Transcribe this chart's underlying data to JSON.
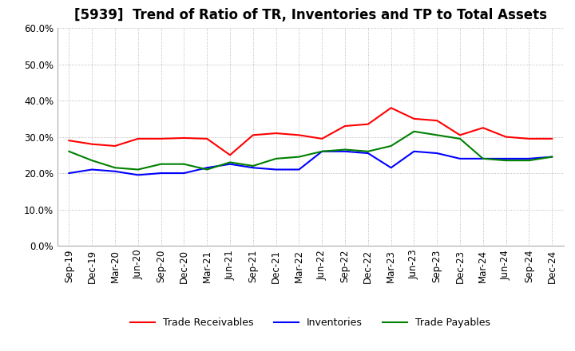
{
  "title": "[5939]  Trend of Ratio of TR, Inventories and TP to Total Assets",
  "labels": [
    "Sep-19",
    "Dec-19",
    "Mar-20",
    "Jun-20",
    "Sep-20",
    "Dec-20",
    "Mar-21",
    "Jun-21",
    "Sep-21",
    "Dec-21",
    "Mar-22",
    "Jun-22",
    "Sep-22",
    "Dec-22",
    "Mar-23",
    "Jun-23",
    "Sep-23",
    "Dec-23",
    "Mar-24",
    "Jun-24",
    "Sep-24",
    "Dec-24"
  ],
  "trade_receivables": [
    29.0,
    28.0,
    27.5,
    29.5,
    29.5,
    29.7,
    29.5,
    25.0,
    30.5,
    31.0,
    30.5,
    29.5,
    33.0,
    33.5,
    38.0,
    35.0,
    34.5,
    30.5,
    32.5,
    30.0,
    29.5,
    29.5
  ],
  "inventories": [
    20.0,
    21.0,
    20.5,
    19.5,
    20.0,
    20.0,
    21.5,
    22.5,
    21.5,
    21.0,
    21.0,
    26.0,
    26.0,
    25.5,
    21.5,
    26.0,
    25.5,
    24.0,
    24.0,
    24.0,
    24.0,
    24.5
  ],
  "trade_payables": [
    26.0,
    23.5,
    21.5,
    21.0,
    22.5,
    22.5,
    21.0,
    23.0,
    22.0,
    24.0,
    24.5,
    26.0,
    26.5,
    26.0,
    27.5,
    31.5,
    30.5,
    29.5,
    24.0,
    23.5,
    23.5,
    24.5
  ],
  "tr_color": "#FF0000",
  "inv_color": "#0000FF",
  "tp_color": "#008000",
  "ylim": [
    0,
    60
  ],
  "yticks": [
    0,
    10,
    20,
    30,
    40,
    50,
    60
  ],
  "background_color": "#FFFFFF",
  "plot_bg_color": "#FFFFFF",
  "grid_color": "#AAAAAA",
  "title_fontsize": 12,
  "legend_fontsize": 9,
  "tick_fontsize": 8.5
}
